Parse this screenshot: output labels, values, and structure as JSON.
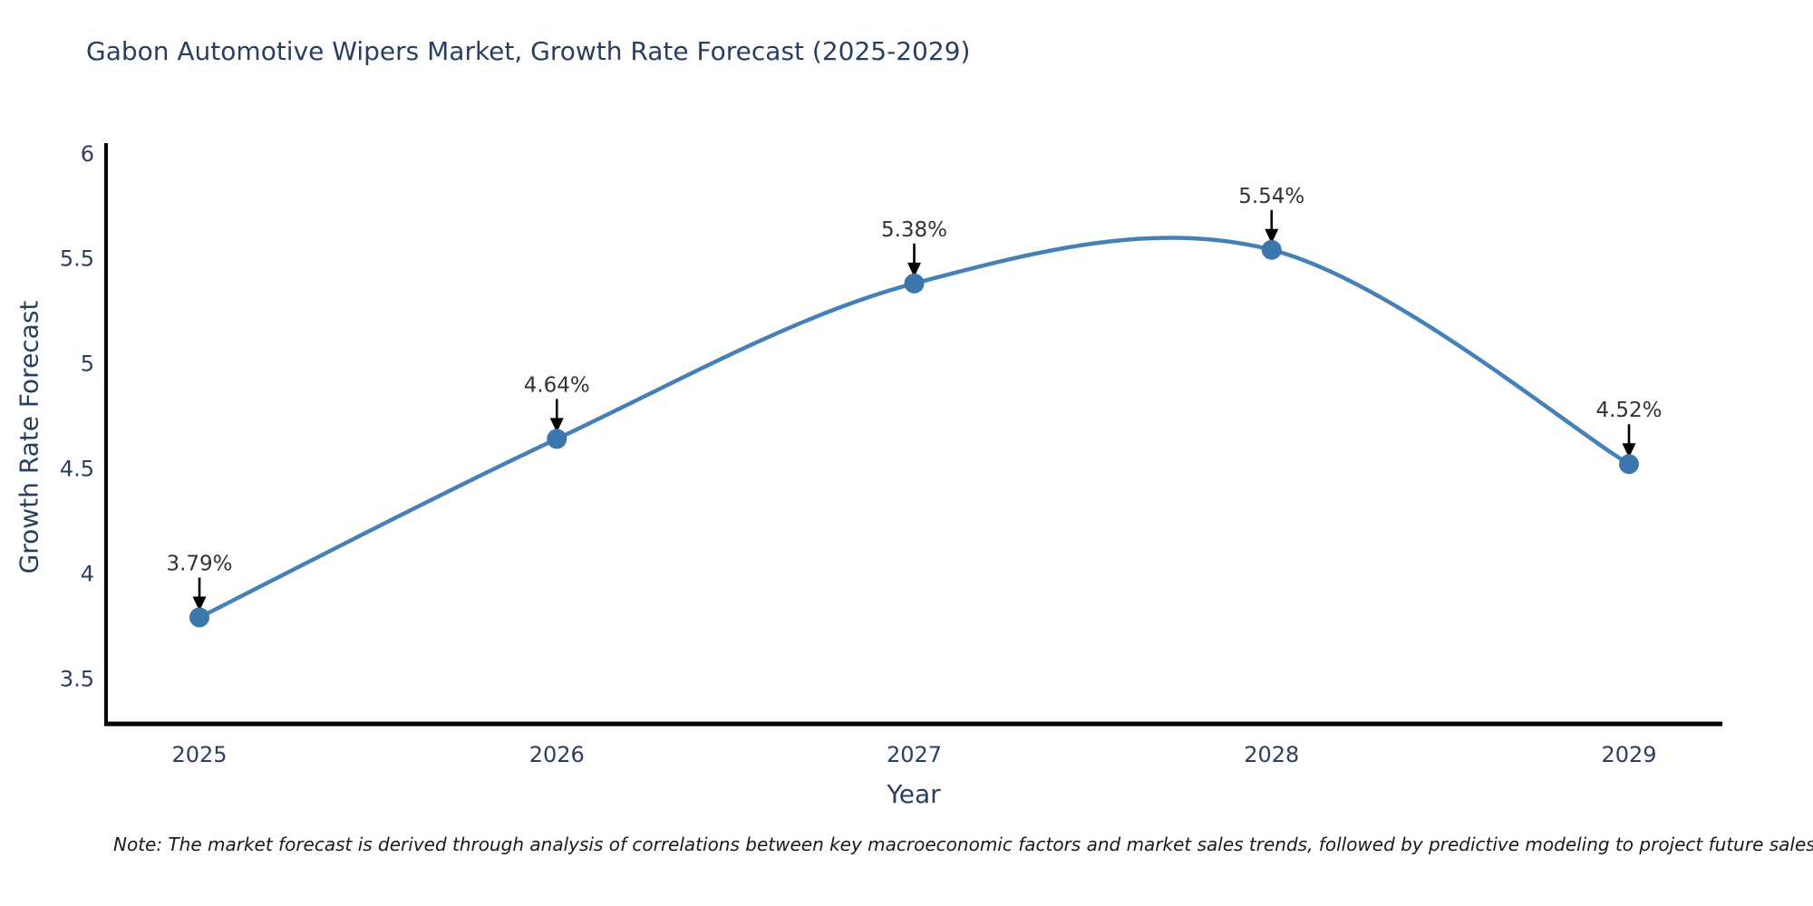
{
  "title": "Gabon Automotive Wipers Market, Growth Rate Forecast (2025-2029)",
  "note": "Note: The market forecast is derived through analysis of correlations between key macroeconomic factors and market sales trends, followed by predictive modeling to project future sales",
  "chart_data": {
    "type": "line",
    "title": "Gabon Automotive Wipers Market, Growth Rate Forecast (2025-2029)",
    "xlabel": "Year",
    "ylabel": "Growth Rate Forecast",
    "categories": [
      "2025",
      "2026",
      "2027",
      "2028",
      "2029"
    ],
    "values": [
      3.79,
      4.64,
      5.38,
      5.54,
      4.52
    ],
    "point_labels": [
      "3.79%",
      "4.64%",
      "5.38%",
      "5.54%",
      "4.52%"
    ],
    "ytick_labels": [
      "3.5",
      "4",
      "4.5",
      "5",
      "5.5",
      "6"
    ],
    "yticks": [
      3.5,
      4,
      4.5,
      5,
      5.5,
      6
    ],
    "ylim": [
      3.283,
      6.048
    ],
    "grid": false,
    "legend": false,
    "line_shape": "spline",
    "annotation_style": "down-arrow",
    "colors": {
      "line": "#4580b6",
      "marker": "#3b76ad",
      "axis": "#000000",
      "tick_text": "#2a3f5f",
      "annotation_text": "#333333",
      "arrow": "#000000",
      "background": "#ffffff"
    }
  }
}
